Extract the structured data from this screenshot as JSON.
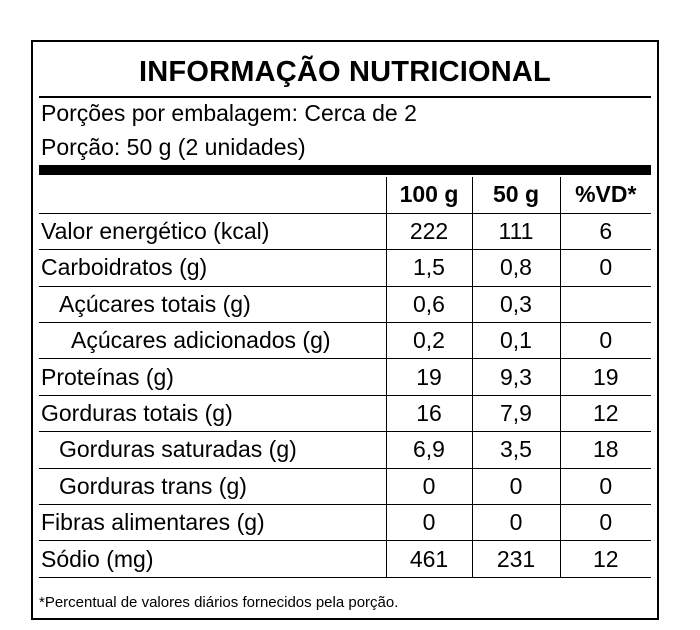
{
  "title": "INFORMAÇÃO NUTRICIONAL",
  "servings_per_package": "Porções por embalagem: Cerca de 2",
  "serving_size": "Porção: 50 g (2 unidades)",
  "columns": [
    "100 g",
    "50 g",
    "%VD*"
  ],
  "rows": [
    {
      "name": "Valor energético (kcal)",
      "indent": 0,
      "v100": "222",
      "v50": "111",
      "vd": "6"
    },
    {
      "name": "Carboidratos (g)",
      "indent": 0,
      "v100": "1,5",
      "v50": "0,8",
      "vd": "0"
    },
    {
      "name": "Açúcares totais (g)",
      "indent": 1,
      "v100": "0,6",
      "v50": "0,3",
      "vd": ""
    },
    {
      "name": "Açúcares adicionados (g)",
      "indent": 2,
      "v100": "0,2",
      "v50": "0,1",
      "vd": "0"
    },
    {
      "name": "Proteínas (g)",
      "indent": 0,
      "v100": "19",
      "v50": "9,3",
      "vd": "19"
    },
    {
      "name": "Gorduras totais (g)",
      "indent": 0,
      "v100": "16",
      "v50": "7,9",
      "vd": "12"
    },
    {
      "name": "Gorduras saturadas (g)",
      "indent": 1,
      "v100": "6,9",
      "v50": "3,5",
      "vd": "18"
    },
    {
      "name": "Gorduras trans (g)",
      "indent": 1,
      "v100": "0",
      "v50": "0",
      "vd": "0"
    },
    {
      "name": "Fibras alimentares (g)",
      "indent": 0,
      "v100": "0",
      "v50": "0",
      "vd": "0"
    },
    {
      "name": "Sódio (mg)",
      "indent": 0,
      "v100": "461",
      "v50": "231",
      "vd": "12"
    }
  ],
  "footnote": "*Percentual de valores diários fornecidos pela porção."
}
